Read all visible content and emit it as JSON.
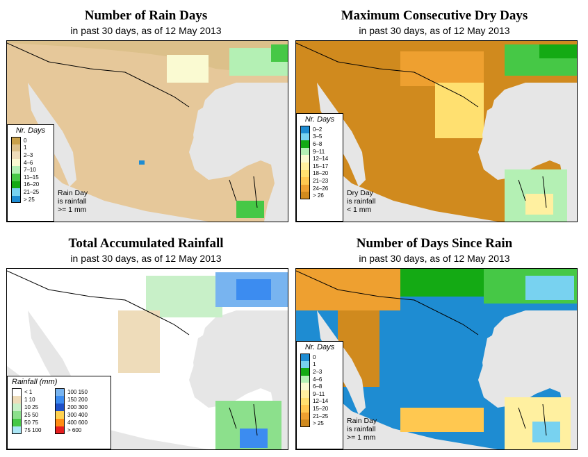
{
  "panels": {
    "rain_days": {
      "title": "Number of Rain Days",
      "subtitle": "in past 30 days, as of  12 May 2013",
      "legend_title": "Nr. Days",
      "legend": [
        {
          "label": "0",
          "color": "#c8a04a"
        },
        {
          "label": "1",
          "color": "#dcc08a"
        },
        {
          "label": "2–3",
          "color": "#eedcba"
        },
        {
          "label": "4–6",
          "color": "#fafad2"
        },
        {
          "label": "7–10",
          "color": "#b4f0b4"
        },
        {
          "label": "11–15",
          "color": "#46c846"
        },
        {
          "label": "16–20",
          "color": "#14aa14"
        },
        {
          "label": "21–25",
          "color": "#78d2f0"
        },
        {
          "label": "> 25",
          "color": "#1e8cd2"
        }
      ],
      "note": [
        "Rain Day",
        "is rainfall",
        ">= 1 mm"
      ]
    },
    "dry_days": {
      "title": "Maximum Consecutive Dry Days",
      "subtitle": "in past 30 days, as of  12 May 2013",
      "legend_title": "Nr. Days",
      "legend": [
        {
          "label": "0–2",
          "color": "#1e8cd2"
        },
        {
          "label": "3–5",
          "color": "#78d2f0"
        },
        {
          "label": "6–8",
          "color": "#14aa14"
        },
        {
          "label": "9–11",
          "color": "#b4f0b4"
        },
        {
          "label": "12–14",
          "color": "#fafad2"
        },
        {
          "label": "15–17",
          "color": "#fff0a0"
        },
        {
          "label": "18–20",
          "color": "#ffe070"
        },
        {
          "label": "21–23",
          "color": "#ffc850"
        },
        {
          "label": "24–26",
          "color": "#eea030"
        },
        {
          "label": "> 26",
          "color": "#d08a1e"
        }
      ],
      "note": [
        "Dry Day",
        "is rainfall",
        "< 1 mm"
      ]
    },
    "total_rain": {
      "title": "Total Accumulated Rainfall",
      "subtitle": "in past 30 days, as of  12 May 2013",
      "legend_title": "Rainfall (mm)",
      "legend_left": [
        {
          "label": "< 1",
          "color": "#ffffff"
        },
        {
          "label": "1     10",
          "color": "#eedcba"
        },
        {
          "label": "10    25",
          "color": "#c8f0c8"
        },
        {
          "label": "25    50",
          "color": "#8ce08c"
        },
        {
          "label": "50    75",
          "color": "#46c846"
        },
        {
          "label": "75   100",
          "color": "#aae6f5"
        }
      ],
      "legend_right": [
        {
          "label": "100  150",
          "color": "#78b4f0"
        },
        {
          "label": "150  200",
          "color": "#3c8cf0"
        },
        {
          "label": "200  300",
          "color": "#1e50c8"
        },
        {
          "label": "300  400",
          "color": "#ffd250"
        },
        {
          "label": "400  600",
          "color": "#ff8c14"
        },
        {
          "label": "> 600",
          "color": "#e61e1e"
        }
      ]
    },
    "since_rain": {
      "title": "Number of Days Since Rain",
      "subtitle": "in past 30 days, as of  12 May 2013",
      "legend_title": "Nr. Days",
      "legend": [
        {
          "label": "0",
          "color": "#1e8cd2"
        },
        {
          "label": "1",
          "color": "#78d2f0"
        },
        {
          "label": "2–3",
          "color": "#14aa14"
        },
        {
          "label": "4–6",
          "color": "#b4f0b4"
        },
        {
          "label": "6–8",
          "color": "#fafad2"
        },
        {
          "label": "9–11",
          "color": "#fff0a0"
        },
        {
          "label": "12–14",
          "color": "#ffe070"
        },
        {
          "label": "15–20",
          "color": "#ffc850"
        },
        {
          "label": "21–25",
          "color": "#eea030"
        },
        {
          "label": "> 25",
          "color": "#d08a1e"
        }
      ],
      "note": [
        "Rain Day",
        "is rainfall",
        ">= 1 mm"
      ]
    }
  },
  "colors": {
    "ocean": "#e6e6e6",
    "border": "#000000"
  }
}
